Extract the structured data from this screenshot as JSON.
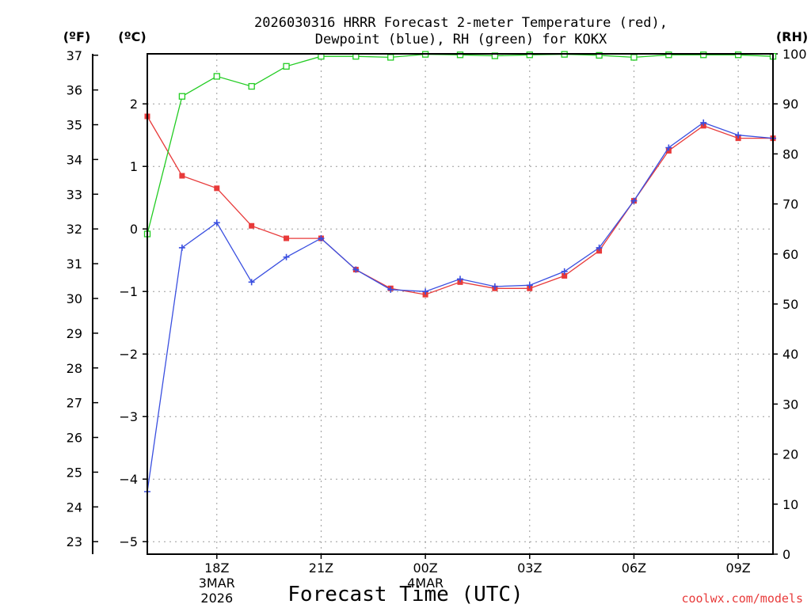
{
  "chart_data": {
    "type": "line",
    "title_line1": "2026030316 HRRR Forecast 2-meter Temperature (red),",
    "title_line2": "Dewpoint (blue), RH (green) for KOKX",
    "xlabel": "Forecast Time (UTC)",
    "unit_f": "(ºF)",
    "unit_c": "(ºC)",
    "unit_rh": "(RH)",
    "credit": "coolwx.com/models",
    "hours": [
      0,
      1,
      2,
      3,
      4,
      5,
      6,
      7,
      8,
      9,
      10,
      11,
      12,
      13,
      14,
      15,
      16,
      17,
      18
    ],
    "ylim_c": [
      -5.2,
      2.8
    ],
    "ylim_rh": [
      0,
      100
    ],
    "ylim_f": [
      22.64,
      37.04
    ],
    "x_ticks": [
      {
        "hour": 2,
        "label": "18Z",
        "sub1": "3MAR",
        "sub2": "2026"
      },
      {
        "hour": 5,
        "label": "21Z",
        "sub1": "",
        "sub2": ""
      },
      {
        "hour": 8,
        "label": "00Z",
        "sub1": "4MAR",
        "sub2": ""
      },
      {
        "hour": 11,
        "label": "03Z",
        "sub1": "",
        "sub2": ""
      },
      {
        "hour": 14,
        "label": "06Z",
        "sub1": "",
        "sub2": ""
      },
      {
        "hour": 17,
        "label": "09Z",
        "sub1": "",
        "sub2": ""
      }
    ],
    "c_ticks": [
      "2",
      "1",
      "0",
      "−1",
      "−2",
      "−3",
      "−4",
      "−5"
    ],
    "c_tick_values": [
      2,
      1,
      0,
      -1,
      -2,
      -3,
      -4,
      -5
    ],
    "f_ticks": [
      "37",
      "36",
      "35",
      "34",
      "33",
      "32",
      "31",
      "30",
      "29",
      "28",
      "27",
      "26",
      "25",
      "24",
      "23"
    ],
    "f_tick_values": [
      37,
      36,
      35,
      34,
      33,
      32,
      31,
      30,
      29,
      28,
      27,
      26,
      25,
      24,
      23
    ],
    "rh_ticks": [
      "100",
      "90",
      "80",
      "70",
      "60",
      "50",
      "40",
      "30",
      "20",
      "10",
      "0"
    ],
    "rh_tick_values": [
      100,
      90,
      80,
      70,
      60,
      50,
      40,
      30,
      20,
      10,
      0
    ],
    "series": [
      {
        "name": "Temperature",
        "color": "#e83a3a",
        "marker": "square-filled",
        "values": [
          1.8,
          0.85,
          0.65,
          0.05,
          -0.15,
          -0.15,
          -0.65,
          -0.95,
          -1.05,
          -0.85,
          -0.95,
          -0.95,
          -0.75,
          -0.35,
          0.45,
          1.25,
          1.65,
          1.45,
          1.45
        ]
      },
      {
        "name": "Dewpoint",
        "color": "#3a4fe0",
        "marker": "plus",
        "values": [
          -4.2,
          -0.3,
          0.1,
          -0.85,
          -0.45,
          -0.15,
          -0.65,
          -0.97,
          -1.0,
          -0.8,
          -0.92,
          -0.9,
          -0.68,
          -0.3,
          0.45,
          1.3,
          1.7,
          1.5,
          1.45
        ]
      },
      {
        "name": "RH",
        "color": "#22cc22",
        "marker": "square-open",
        "axis": "rh",
        "values": [
          64,
          91.5,
          95.5,
          93.5,
          97.5,
          99.5,
          99.5,
          99.3,
          99.9,
          99.8,
          99.6,
          99.8,
          99.9,
          99.7,
          99.3,
          99.8,
          99.8,
          99.8,
          99.5
        ]
      }
    ]
  }
}
